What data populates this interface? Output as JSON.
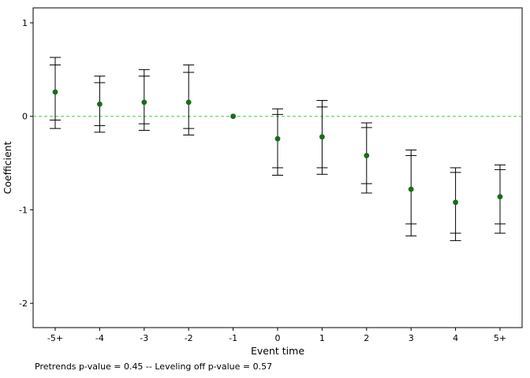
{
  "chart_data": {
    "type": "scatter",
    "title": "",
    "xlabel": "Event time",
    "ylabel": "Coefficient",
    "footnote": "Pretrends p-value = 0.45 -- Leveling off p-value = 0.57",
    "ylim": [
      -2.26,
      1.16
    ],
    "yticks": [
      1,
      0,
      -1,
      -2
    ],
    "zero_line": 0,
    "grid": false,
    "legend": "none",
    "categories": [
      "-5+",
      "-4",
      "-3",
      "-2",
      "-1",
      "0",
      "1",
      "2",
      "3",
      "4",
      "5+"
    ],
    "points": [
      {
        "x": "-5+",
        "coef": 0.26,
        "inner": [
          -0.04,
          0.55
        ],
        "outer": [
          -0.13,
          0.63
        ]
      },
      {
        "x": "-4",
        "coef": 0.13,
        "inner": [
          -0.1,
          0.36
        ],
        "outer": [
          -0.17,
          0.43
        ]
      },
      {
        "x": "-3",
        "coef": 0.15,
        "inner": [
          -0.08,
          0.43
        ],
        "outer": [
          -0.15,
          0.5
        ]
      },
      {
        "x": "-2",
        "coef": 0.15,
        "inner": [
          -0.13,
          0.47
        ],
        "outer": [
          -0.2,
          0.55
        ]
      },
      {
        "x": "-1",
        "coef": 0.0,
        "inner": null,
        "outer": null
      },
      {
        "x": "0",
        "coef": -0.24,
        "inner": [
          -0.55,
          0.02
        ],
        "outer": [
          -0.63,
          0.08
        ]
      },
      {
        "x": "1",
        "coef": -0.22,
        "inner": [
          -0.55,
          0.1
        ],
        "outer": [
          -0.62,
          0.17
        ]
      },
      {
        "x": "2",
        "coef": -0.42,
        "inner": [
          -0.72,
          -0.12
        ],
        "outer": [
          -0.82,
          -0.07
        ]
      },
      {
        "x": "3",
        "coef": -0.78,
        "inner": [
          -1.15,
          -0.42
        ],
        "outer": [
          -1.28,
          -0.36
        ]
      },
      {
        "x": "4",
        "coef": -0.92,
        "inner": [
          -1.25,
          -0.6
        ],
        "outer": [
          -1.33,
          -0.55
        ]
      },
      {
        "x": "5+",
        "coef": -0.86,
        "inner": [
          -1.15,
          -0.57
        ],
        "outer": [
          -1.25,
          -0.52
        ]
      }
    ],
    "colors": {
      "point": "#1a6b1a",
      "zero_line": "#44cc44",
      "error_bar": "#000000",
      "frame": "#000000",
      "background": "#ffffff"
    }
  }
}
